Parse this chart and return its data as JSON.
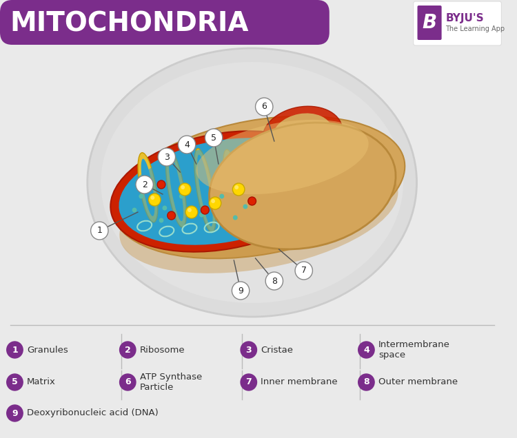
{
  "title": "MITOCHONDRIA",
  "title_bg_color": "#7B2D8B",
  "title_text_color": "#FFFFFF",
  "bg_color": "#EAEAEA",
  "outer_membrane_color": "#D4A55A",
  "outer_membrane_dark": "#B8883A",
  "inner_membrane_color": "#CC2200",
  "matrix_color": "#2B9FCC",
  "cristae_color": "#E8C030",
  "cristae_dark": "#C89A00",
  "label_circle_color": "#7B2D8B",
  "label_text_color": "#FFFFFF",
  "byju_purple": "#7B2D8B",
  "callout_line_color": "#555555",
  "separator_color": "#BBBBBB",
  "legend_text_color": "#333333",
  "legend_items": [
    {
      "num": "1",
      "label": "Granules"
    },
    {
      "num": "2",
      "label": "Ribosome"
    },
    {
      "num": "3",
      "label": "Cristae"
    },
    {
      "num": "4",
      "label": "Intermembrane\nspace"
    },
    {
      "num": "5",
      "label": "Matrix"
    },
    {
      "num": "6",
      "label": "ATP Synthase\nParticle"
    },
    {
      "num": "7",
      "label": "Inner membrane"
    },
    {
      "num": "8",
      "label": "Outer membrane"
    },
    {
      "num": "9",
      "label": "Deoxyribonucleic acid (DNA)"
    }
  ]
}
